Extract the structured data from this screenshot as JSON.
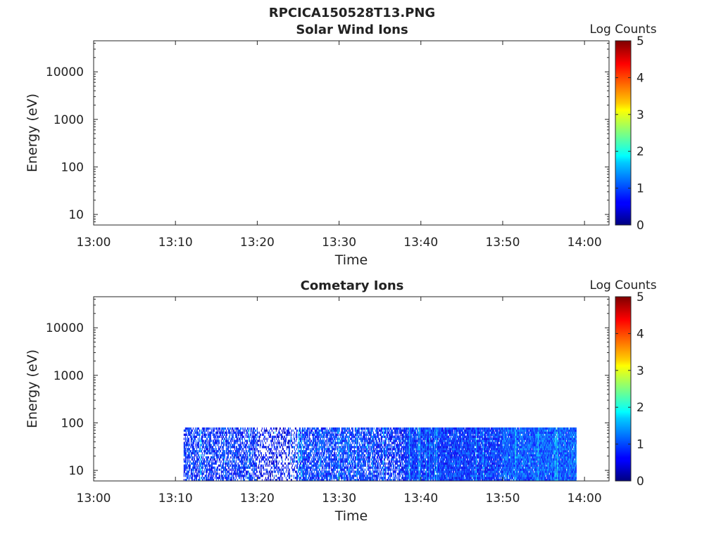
{
  "figure": {
    "title": "RPCICA150528T13.PNG"
  },
  "chart_data": [
    {
      "type": "heatmap",
      "title": "Solar Wind Ions",
      "xlabel": "Time",
      "ylabel": "Energy (eV)",
      "x_ticks": [
        "13:00",
        "13:10",
        "13:20",
        "13:30",
        "13:40",
        "13:50",
        "14:00"
      ],
      "x_range": [
        "13:00",
        "14:03"
      ],
      "y_scale": "log",
      "y_ticks": [
        10,
        100,
        1000,
        10000
      ],
      "y_tick_labels": [
        "10",
        "100",
        "1000",
        "10000"
      ],
      "y_range": [
        6,
        45000
      ],
      "colorbar": {
        "title": "Log Counts",
        "range": [
          0,
          5
        ],
        "ticks": [
          0,
          1,
          2,
          3,
          4,
          5
        ],
        "tick_labels": [
          "0",
          "1",
          "2",
          "3",
          "4",
          "5"
        ],
        "colormap": "jet"
      },
      "data_extent": null
    },
    {
      "type": "heatmap",
      "title": "Cometary Ions",
      "xlabel": "Time",
      "ylabel": "Energy (eV)",
      "x_ticks": [
        "13:00",
        "13:10",
        "13:20",
        "13:30",
        "13:40",
        "13:50",
        "14:00"
      ],
      "x_range": [
        "13:00",
        "14:03"
      ],
      "y_scale": "log",
      "y_ticks": [
        10,
        100,
        1000,
        10000
      ],
      "y_tick_labels": [
        "10",
        "100",
        "1000",
        "10000"
      ],
      "y_range": [
        6,
        45000
      ],
      "colorbar": {
        "title": "Log Counts",
        "range": [
          0,
          5
        ],
        "ticks": [
          0,
          1,
          2,
          3,
          4,
          5
        ],
        "tick_labels": [
          "0",
          "1",
          "2",
          "3",
          "4",
          "5"
        ],
        "colormap": "jet"
      },
      "data_extent": {
        "time_start": "13:11",
        "time_end": "13:59",
        "energy_min": 6,
        "energy_max": 80
      },
      "segments": [
        {
          "start": "13:11",
          "end": "13:20",
          "level": 0.8,
          "density": 0.65
        },
        {
          "start": "13:20",
          "end": "13:25",
          "level": 0.6,
          "density": 0.4
        },
        {
          "start": "13:25",
          "end": "13:33",
          "level": 0.9,
          "density": 0.75
        },
        {
          "start": "13:33",
          "end": "13:38",
          "level": 0.8,
          "density": 0.7
        },
        {
          "start": "13:38",
          "end": "13:50",
          "level": 0.85,
          "density": 0.95
        },
        {
          "start": "13:50",
          "end": "13:59",
          "level": 1.05,
          "density": 0.97
        }
      ]
    }
  ]
}
